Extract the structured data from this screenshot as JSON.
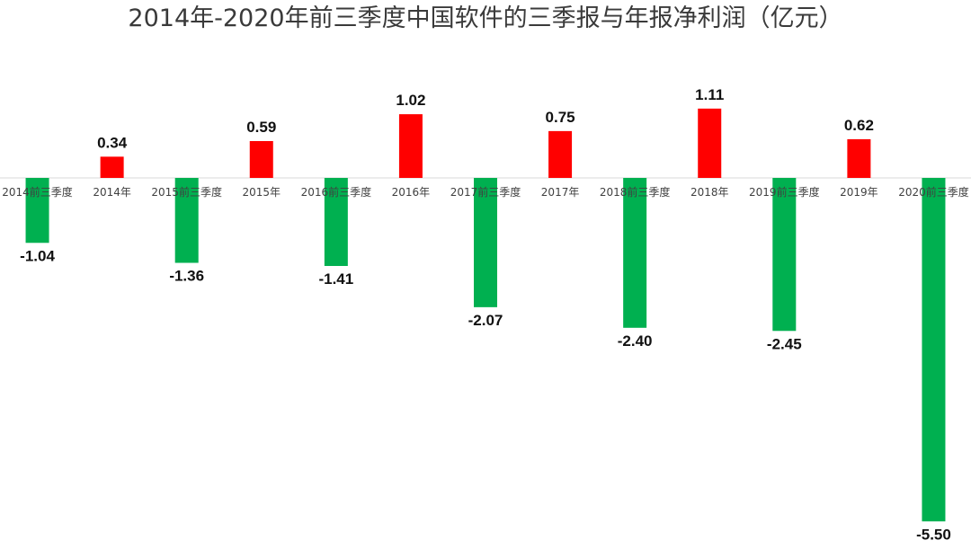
{
  "chart_data": {
    "type": "bar",
    "title": "2014年-2020年前三季度中国软件的三季报与年报净利润（亿元）",
    "categories": [
      "2014前三季度",
      "2014年",
      "2015前三季度",
      "2015年",
      "2016前三季度",
      "2016年",
      "2017前三季度",
      "2017年",
      "2018前三季度",
      "2018年",
      "2019前三季度",
      "2019年",
      "2020前三季度"
    ],
    "values": [
      -1.04,
      0.34,
      -1.36,
      0.59,
      -1.41,
      1.02,
      -2.07,
      0.75,
      -2.4,
      1.11,
      -2.45,
      0.62,
      -5.5
    ],
    "value_labels": [
      "-1.04",
      "0.34",
      "-1.36",
      "0.59",
      "-1.41",
      "1.02",
      "-2.07",
      "0.75",
      "-2.40",
      "1.11",
      "-2.45",
      "0.62",
      "-5.50"
    ],
    "colors": {
      "positive": "#ff0000",
      "negative": "#00b050",
      "axis": "#d9d9d9"
    },
    "xlabel": "",
    "ylabel": "",
    "grid": false,
    "legend": "none"
  }
}
